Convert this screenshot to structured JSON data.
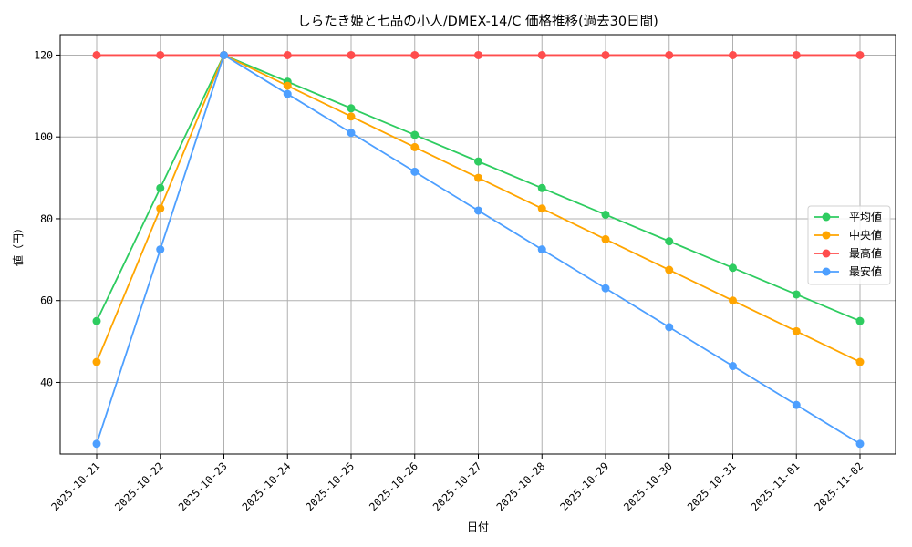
{
  "chart_data": {
    "type": "line",
    "title": "しらたき姫と七品の小人/DMEX-14/C 価格推移(過去30日間)",
    "xlabel": "日付",
    "ylabel": "値（円）",
    "x": [
      "2025-10-21",
      "2025-10-22",
      "2025-10-23",
      "2025-10-24",
      "2025-10-25",
      "2025-10-26",
      "2025-10-27",
      "2025-10-28",
      "2025-10-29",
      "2025-10-30",
      "2025-10-31",
      "2025-11-01",
      "2025-11-02"
    ],
    "ylim": [
      22.5,
      125
    ],
    "yticks": [
      40,
      60,
      80,
      100,
      120
    ],
    "grid": true,
    "legend_position": "center right",
    "series": [
      {
        "name": "平均値",
        "color": "#2ecc60",
        "values": [
          55,
          87.5,
          120,
          113.5,
          107,
          100.5,
          94,
          87.5,
          81,
          74.5,
          68,
          61.5,
          55
        ]
      },
      {
        "name": "中央値",
        "color": "#ffa500",
        "values": [
          45,
          82.5,
          120,
          112.5,
          105,
          97.5,
          90,
          82.5,
          75,
          67.5,
          60,
          52.5,
          45
        ]
      },
      {
        "name": "最高値",
        "color": "#ff4d4d",
        "values": [
          120,
          120,
          120,
          120,
          120,
          120,
          120,
          120,
          120,
          120,
          120,
          120,
          120
        ]
      },
      {
        "name": "最安値",
        "color": "#4d9fff",
        "values": [
          25,
          72.5,
          120,
          110.5,
          101,
          91.5,
          82,
          72.5,
          63,
          53.5,
          44,
          34.5,
          25
        ]
      }
    ]
  }
}
